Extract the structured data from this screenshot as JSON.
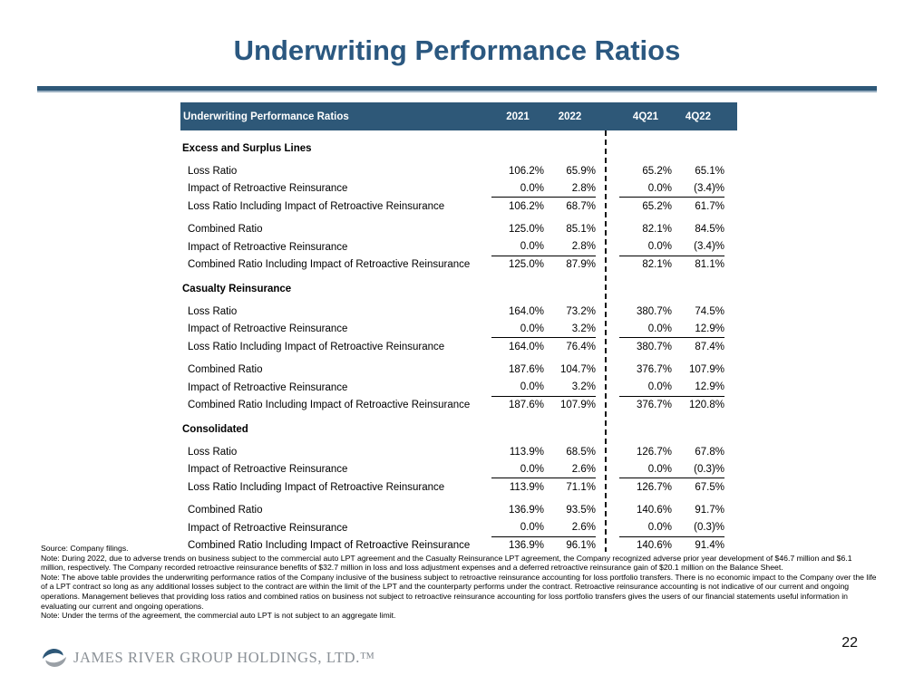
{
  "title": "Underwriting Performance Ratios",
  "colors": {
    "primary_blue": "#2E5878",
    "rule_accent": "#9BB0C2",
    "logo_gray": "#8A9096",
    "logo_blue": "#2E5878"
  },
  "table": {
    "header_label": "Underwriting Performance Ratios",
    "columns": [
      "2021",
      "2022",
      "4Q21",
      "4Q22"
    ],
    "sections": [
      {
        "name": "Excess and Surplus Lines",
        "groups": [
          [
            {
              "label": "Loss Ratio",
              "values": [
                "106.2%",
                "65.9%",
                "65.2%",
                "65.1%"
              ]
            },
            {
              "label": "Impact of Retroactive Reinsurance",
              "values": [
                "0.0%",
                "2.8%",
                "0.0%",
                "(3.4)%"
              ],
              "rule": true
            },
            {
              "label": "Loss Ratio Including Impact of Retroactive Reinsurance",
              "values": [
                "106.2%",
                "68.7%",
                "65.2%",
                "61.7%"
              ]
            }
          ],
          [
            {
              "label": "Combined Ratio",
              "values": [
                "125.0%",
                "85.1%",
                "82.1%",
                "84.5%"
              ]
            },
            {
              "label": "Impact of Retroactive Reinsurance",
              "values": [
                "0.0%",
                "2.8%",
                "0.0%",
                "(3.4)%"
              ],
              "rule": true
            },
            {
              "label": "Combined Ratio Including Impact of Retroactive Reinsurance",
              "values": [
                "125.0%",
                "87.9%",
                "82.1%",
                "81.1%"
              ]
            }
          ]
        ]
      },
      {
        "name": "Casualty Reinsurance",
        "groups": [
          [
            {
              "label": "Loss Ratio",
              "values": [
                "164.0%",
                "73.2%",
                "380.7%",
                "74.5%"
              ]
            },
            {
              "label": "Impact of Retroactive Reinsurance",
              "values": [
                "0.0%",
                "3.2%",
                "0.0%",
                "12.9%"
              ],
              "rule": true
            },
            {
              "label": "Loss Ratio Including Impact of Retroactive Reinsurance",
              "values": [
                "164.0%",
                "76.4%",
                "380.7%",
                "87.4%"
              ]
            }
          ],
          [
            {
              "label": "Combined Ratio",
              "values": [
                "187.6%",
                "104.7%",
                "376.7%",
                "107.9%"
              ]
            },
            {
              "label": "Impact of Retroactive Reinsurance",
              "values": [
                "0.0%",
                "3.2%",
                "0.0%",
                "12.9%"
              ],
              "rule": true
            },
            {
              "label": "Combined Ratio Including Impact of Retroactive Reinsurance",
              "values": [
                "187.6%",
                "107.9%",
                "376.7%",
                "120.8%"
              ]
            }
          ]
        ]
      },
      {
        "name": "Consolidated",
        "groups": [
          [
            {
              "label": "Loss Ratio",
              "values": [
                "113.9%",
                "68.5%",
                "126.7%",
                "67.8%"
              ]
            },
            {
              "label": "Impact of Retroactive Reinsurance",
              "values": [
                "0.0%",
                "2.6%",
                "0.0%",
                "(0.3)%"
              ],
              "rule": true
            },
            {
              "label": "Loss Ratio Including Impact of Retroactive Reinsurance",
              "values": [
                "113.9%",
                "71.1%",
                "126.7%",
                "67.5%"
              ]
            }
          ],
          [
            {
              "label": "Combined Ratio",
              "values": [
                "136.9%",
                "93.5%",
                "140.6%",
                "91.7%"
              ]
            },
            {
              "label": "Impact of Retroactive Reinsurance",
              "values": [
                "0.0%",
                "2.6%",
                "0.0%",
                "(0.3)%"
              ],
              "rule": true
            },
            {
              "label": "Combined Ratio Including Impact of Retroactive Reinsurance",
              "values": [
                "136.9%",
                "96.1%",
                "140.6%",
                "91.4%"
              ]
            }
          ]
        ]
      }
    ]
  },
  "footnotes": [
    "Source: Company filings.",
    "Note: During 2022, due to adverse trends on business subject to the commercial auto LPT agreement and the Casualty Reinsurance LPT agreement, the Company recognized adverse prior year development of $46.7 million and $6.1 million, respectively. The Company recorded retroactive reinsurance benefits of $32.7 million in loss and loss adjustment expenses and a deferred retroactive reinsurance gain of $20.1 million on the Balance Sheet.",
    "Note: The above table provides the underwriting performance ratios of the Company inclusive of the business subject to retroactive reinsurance accounting for loss portfolio transfers. There is no economic impact to the Company over the life of a LPT contract so long as any additional losses subject to the contract are within the limit of the LPT and the counterparty performs under the contract. Retroactive reinsurance accounting is not indicative of our current and ongoing operations. Management believes that providing loss ratios and combined ratios on business not subject to retroactive reinsurance accounting for loss portfolio transfers gives the users of our financial statements useful information in evaluating our current and ongoing operations.",
    "Note: Under the terms of the agreement, the commercial auto LPT is not subject to an aggregate limit."
  ],
  "footer": {
    "logo_text": "JAMES RIVER GROUP HOLDINGS, LTD.™",
    "page_number": "22"
  }
}
